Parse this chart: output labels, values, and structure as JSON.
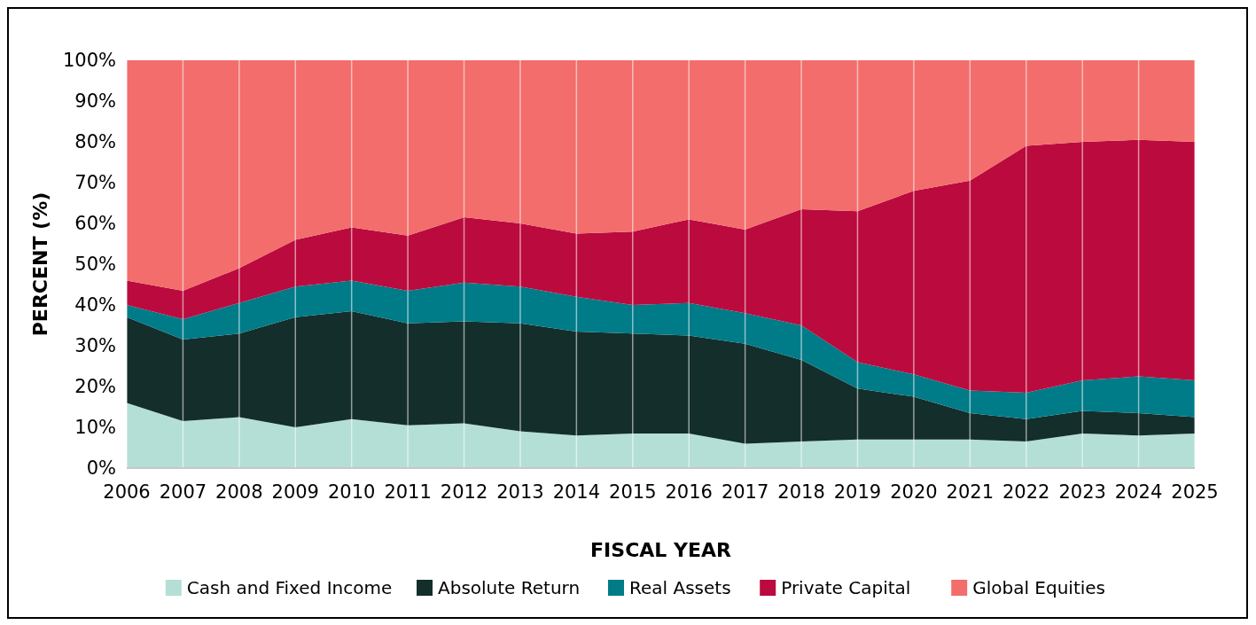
{
  "chart_data": {
    "type": "area",
    "stacked": true,
    "xlabel": "FISCAL YEAR",
    "ylabel": "PERCENT (%)",
    "categories": [
      "2006",
      "2007",
      "2008",
      "2009",
      "2010",
      "2011",
      "2012",
      "2013",
      "2014",
      "2015",
      "2016",
      "2017",
      "2018",
      "2019",
      "2020",
      "2021",
      "2022",
      "2023",
      "2024",
      "2025"
    ],
    "ylim": [
      0,
      100
    ],
    "yticks": [
      {
        "value": 0,
        "label": "0%"
      },
      {
        "value": 10,
        "label": "10%"
      },
      {
        "value": 20,
        "label": "20%"
      },
      {
        "value": 30,
        "label": "30%"
      },
      {
        "value": 40,
        "label": "40%"
      },
      {
        "value": 50,
        "label": "50%"
      },
      {
        "value": 60,
        "label": "60%"
      },
      {
        "value": 70,
        "label": "70%"
      },
      {
        "value": 80,
        "label": "80%"
      },
      {
        "value": 90,
        "label": "90%"
      },
      {
        "value": 100,
        "label": "100%"
      }
    ],
    "grid": "x",
    "legend": "bottom",
    "series": [
      {
        "name": "Cash and Fixed Income",
        "color": "#b3dfd6",
        "values": [
          16,
          11.5,
          12.5,
          10,
          12,
          10.5,
          11,
          9,
          8,
          8.5,
          8.5,
          6,
          6.5,
          7,
          7,
          7,
          6.5,
          8.5,
          8,
          8.5
        ]
      },
      {
        "name": "Absolute Return",
        "color": "#142e2b",
        "values": [
          21,
          20,
          20.5,
          27,
          26.5,
          25,
          25,
          26.5,
          25.5,
          24.5,
          24,
          24.5,
          20,
          12.5,
          10.5,
          6.5,
          5.5,
          5.5,
          5.5,
          4
        ]
      },
      {
        "name": "Real Assets",
        "color": "#007b88",
        "values": [
          3,
          5,
          7.5,
          7.5,
          7.5,
          8,
          9.5,
          9,
          8.5,
          7,
          8,
          7.5,
          8.5,
          6.5,
          5.5,
          5.5,
          6.5,
          7.5,
          9,
          9
        ]
      },
      {
        "name": "Private Capital",
        "color": "#bb0a3e",
        "values": [
          6,
          7,
          8.5,
          11.5,
          13,
          13.5,
          16,
          15.5,
          15.5,
          18,
          20.5,
          20.5,
          28.5,
          37,
          45,
          51.5,
          60.5,
          58.5,
          58,
          58.5
        ]
      },
      {
        "name": "Global Equities",
        "color": "#f26d6b",
        "values": [
          54,
          56.5,
          51,
          44,
          41,
          43,
          38.5,
          40,
          42.5,
          42,
          39,
          41.5,
          36.5,
          37,
          32,
          29.5,
          21,
          20,
          19.5,
          20
        ]
      }
    ]
  }
}
